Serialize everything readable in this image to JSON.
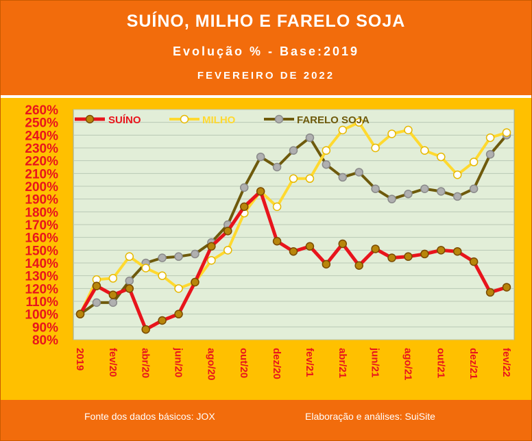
{
  "header": {
    "title": "SUÍNO, MILHO E FARELO SOJA",
    "subtitle": "Evolução % - Base:2019",
    "period": "FEVEREIRO DE 2022"
  },
  "footer": {
    "source": "Fonte dos dados básicos: JOX",
    "credit": "Elaboração e análises: SuiSite"
  },
  "colors": {
    "background": "#f26c0c",
    "chart_border": "#ffc000",
    "plot_area": "#e2eed8",
    "suino": "#e8141c",
    "milho": "#ffd92f",
    "farelo": "#6e5a0c",
    "axis_text": "#e8141c"
  },
  "chart_data": {
    "type": "line",
    "categories": [
      "2019",
      "jan/20",
      "fev/20",
      "mar/20",
      "abr/20",
      "mai/20",
      "jun/20",
      "jul/20",
      "ago/20",
      "set/20",
      "out/20",
      "nov/20",
      "dez/20",
      "jan/21",
      "fev/21",
      "mar/21",
      "abr/21",
      "mai/21",
      "jun/21",
      "jul/21",
      "ago/21",
      "set/21",
      "out/21",
      "nov/21",
      "dez/21",
      "jan/22",
      "fev/22"
    ],
    "x_tick_labels": [
      "2019",
      "fev/20",
      "abr/20",
      "jun/20",
      "ago/20",
      "out/20",
      "dez/20",
      "fev/21",
      "abr/21",
      "jun/21",
      "ago/21",
      "out/21",
      "dez/21",
      "fev/22"
    ],
    "ylim": [
      80,
      260
    ],
    "y_ticks": [
      "80%",
      "90%",
      "100%",
      "110%",
      "120%",
      "130%",
      "140%",
      "150%",
      "160%",
      "170%",
      "180%",
      "190%",
      "200%",
      "210%",
      "220%",
      "230%",
      "240%",
      "250%",
      "260%"
    ],
    "grid": true,
    "legend_position": "top",
    "series": [
      {
        "name": "SUÍNO",
        "values": [
          100,
          122,
          115,
          120,
          88,
          95,
          100,
          125,
          153,
          165,
          184,
          196,
          157,
          149,
          153,
          139,
          155,
          138,
          151,
          144,
          145,
          147,
          150,
          149,
          141,
          117,
          121
        ]
      },
      {
        "name": "MILHO",
        "values": [
          100,
          127,
          128,
          145,
          136,
          130,
          120,
          125,
          142,
          150,
          179,
          196,
          184,
          206,
          206,
          228,
          244,
          250,
          230,
          241,
          244,
          228,
          223,
          209,
          219,
          238,
          242
        ]
      },
      {
        "name": "FARELO SOJA",
        "values": [
          100,
          109,
          109,
          126,
          140,
          144,
          145,
          147,
          156,
          170,
          199,
          223,
          215,
          228,
          238,
          217,
          207,
          211,
          198,
          190,
          194,
          198,
          196,
          192,
          198,
          225,
          240
        ]
      }
    ]
  }
}
